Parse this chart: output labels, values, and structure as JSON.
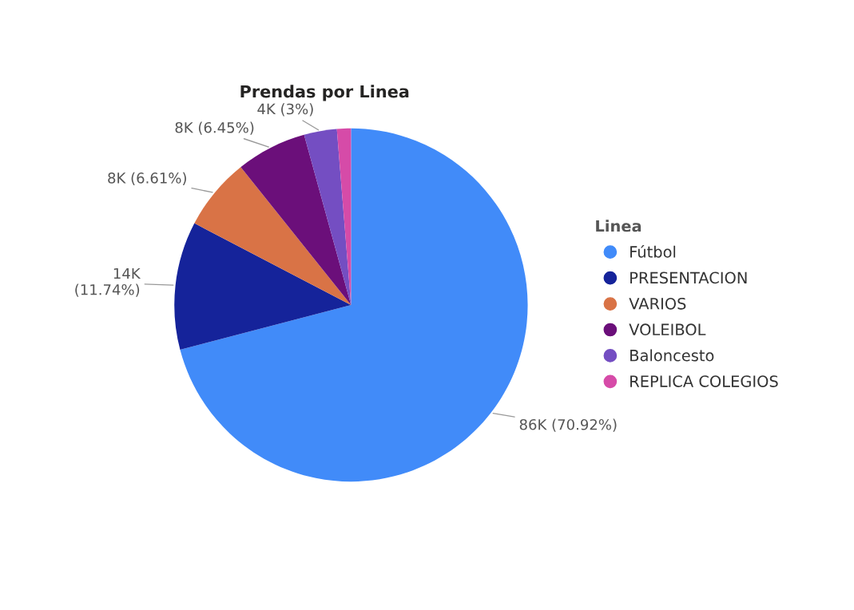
{
  "chart_data": {
    "type": "pie",
    "title": "Prendas por Linea",
    "legend_title": "Linea",
    "legend": "right",
    "categories": [
      "Fútbol",
      "PRESENTACION",
      "VARIOS",
      "VOLEIBOL",
      "Baloncesto",
      "REPLICA COLEGIOS"
    ],
    "values": [
      70.92,
      11.74,
      6.61,
      6.45,
      3,
      1.28
    ],
    "colors": [
      "#418bf9",
      "#15239a",
      "#d97346",
      "#6b0f7a",
      "#744ec2",
      "#d64ba8"
    ],
    "value_labels": [
      "86K (70.92%)",
      "14K\n(11.74%)",
      "8K (6.61%)",
      "8K (6.45%)",
      "4K (3%)",
      null
    ]
  }
}
